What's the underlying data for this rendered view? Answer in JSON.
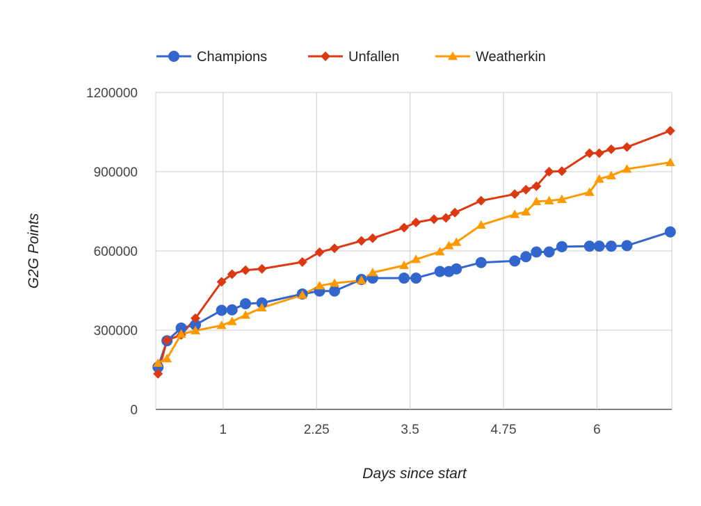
{
  "chart_data": {
    "type": "line",
    "xlabel": "Days since start",
    "ylabel": "G2G Points",
    "xlim": [
      0.1,
      7.0
    ],
    "ylim": [
      0,
      1200000
    ],
    "x_ticks": [
      1,
      2.25,
      3.5,
      4.75,
      6
    ],
    "x_tick_labels": [
      "1",
      "2.25",
      "3.5",
      "4.75",
      "6"
    ],
    "y_ticks": [
      0,
      300000,
      600000,
      900000,
      1200000
    ],
    "y_tick_labels": [
      "0",
      "300000",
      "600000",
      "900000",
      "1200000"
    ],
    "grid": true,
    "legend_position": "top",
    "series": [
      {
        "name": "Champions",
        "color": "#3366cc",
        "marker": "circle",
        "x": [
          0.13,
          0.25,
          0.44,
          0.63,
          0.98,
          1.12,
          1.3,
          1.52,
          2.06,
          2.29,
          2.49,
          2.85,
          3.0,
          3.42,
          3.58,
          3.9,
          4.02,
          4.12,
          4.45,
          4.9,
          5.05,
          5.19,
          5.36,
          5.53,
          5.9,
          6.03,
          6.19,
          6.4,
          6.98
        ],
        "y": [
          160000,
          260000,
          308000,
          320000,
          375000,
          377000,
          400000,
          403000,
          437000,
          448000,
          448000,
          492000,
          497000,
          497000,
          497000,
          522000,
          522000,
          532000,
          556000,
          562000,
          578000,
          596000,
          596000,
          616000,
          618000,
          618000,
          618000,
          620000,
          672000
        ]
      },
      {
        "name": "Unfallen",
        "color": "#dc3912",
        "marker": "diamond",
        "x": [
          0.13,
          0.25,
          0.44,
          0.63,
          0.98,
          1.12,
          1.3,
          1.52,
          2.06,
          2.29,
          2.49,
          2.85,
          3.0,
          3.42,
          3.58,
          3.82,
          3.98,
          4.1,
          4.45,
          4.9,
          5.05,
          5.19,
          5.36,
          5.53,
          5.9,
          6.03,
          6.19,
          6.4,
          6.98
        ],
        "y": [
          135000,
          262000,
          282000,
          345000,
          483000,
          512000,
          527000,
          532000,
          558000,
          595000,
          610000,
          638000,
          648000,
          688000,
          708000,
          720000,
          725000,
          745000,
          790000,
          815000,
          832000,
          845000,
          900000,
          902000,
          970000,
          970000,
          985000,
          993000,
          1055000
        ]
      },
      {
        "name": "Weatherkin",
        "color": "#ff9900",
        "marker": "triangle",
        "x": [
          0.13,
          0.25,
          0.44,
          0.63,
          0.98,
          1.12,
          1.3,
          1.52,
          2.06,
          2.29,
          2.49,
          2.85,
          3.0,
          3.42,
          3.58,
          3.9,
          4.02,
          4.12,
          4.45,
          4.9,
          5.05,
          5.19,
          5.36,
          5.53,
          5.9,
          6.03,
          6.19,
          6.4,
          6.98
        ],
        "y": [
          175000,
          192000,
          285000,
          298000,
          318000,
          333000,
          357000,
          385000,
          433000,
          468000,
          478000,
          488000,
          518000,
          545000,
          568000,
          597000,
          620000,
          633000,
          698000,
          738000,
          748000,
          787000,
          790000,
          795000,
          822000,
          872000,
          885000,
          910000,
          935000
        ]
      }
    ]
  }
}
